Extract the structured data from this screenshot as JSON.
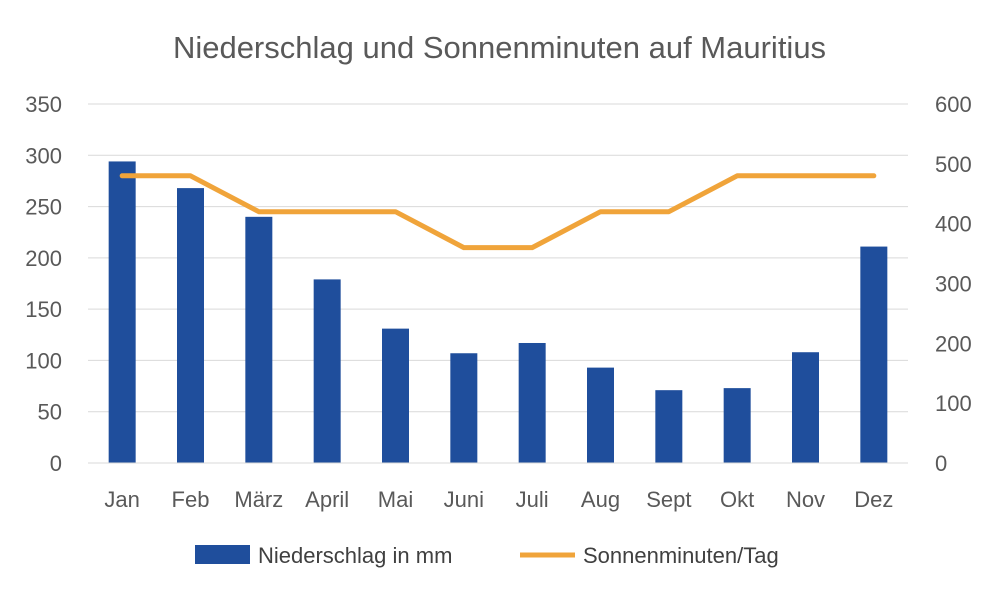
{
  "chart_data": {
    "type": "bar+line",
    "title": "Niederschlag und Sonnenminuten auf Mauritius",
    "categories": [
      "Jan",
      "Feb",
      "März",
      "April",
      "Mai",
      "Juni",
      "Juli",
      "Aug",
      "Sept",
      "Okt",
      "Nov",
      "Dez"
    ],
    "series": [
      {
        "name": "Niederschlag in mm",
        "type": "bar",
        "axis": "left",
        "color": "#1f4e9c",
        "values": [
          294,
          268,
          240,
          179,
          131,
          107,
          117,
          93,
          71,
          73,
          108,
          211
        ]
      },
      {
        "name": "Sonnenminuten/Tag",
        "type": "line",
        "axis": "right",
        "color": "#f0a43a",
        "values": [
          480,
          480,
          420,
          420,
          420,
          360,
          360,
          420,
          420,
          480,
          480,
          480
        ]
      }
    ],
    "y_left": {
      "min": 0,
      "max": 350,
      "ticks": [
        "0",
        "50",
        "100",
        "150",
        "200",
        "250",
        "300",
        "350"
      ]
    },
    "y_right": {
      "min": 0,
      "max": 600,
      "ticks": [
        "0",
        "100",
        "200",
        "300",
        "400",
        "500",
        "600"
      ]
    },
    "grid": true,
    "legend_position": "bottom"
  }
}
